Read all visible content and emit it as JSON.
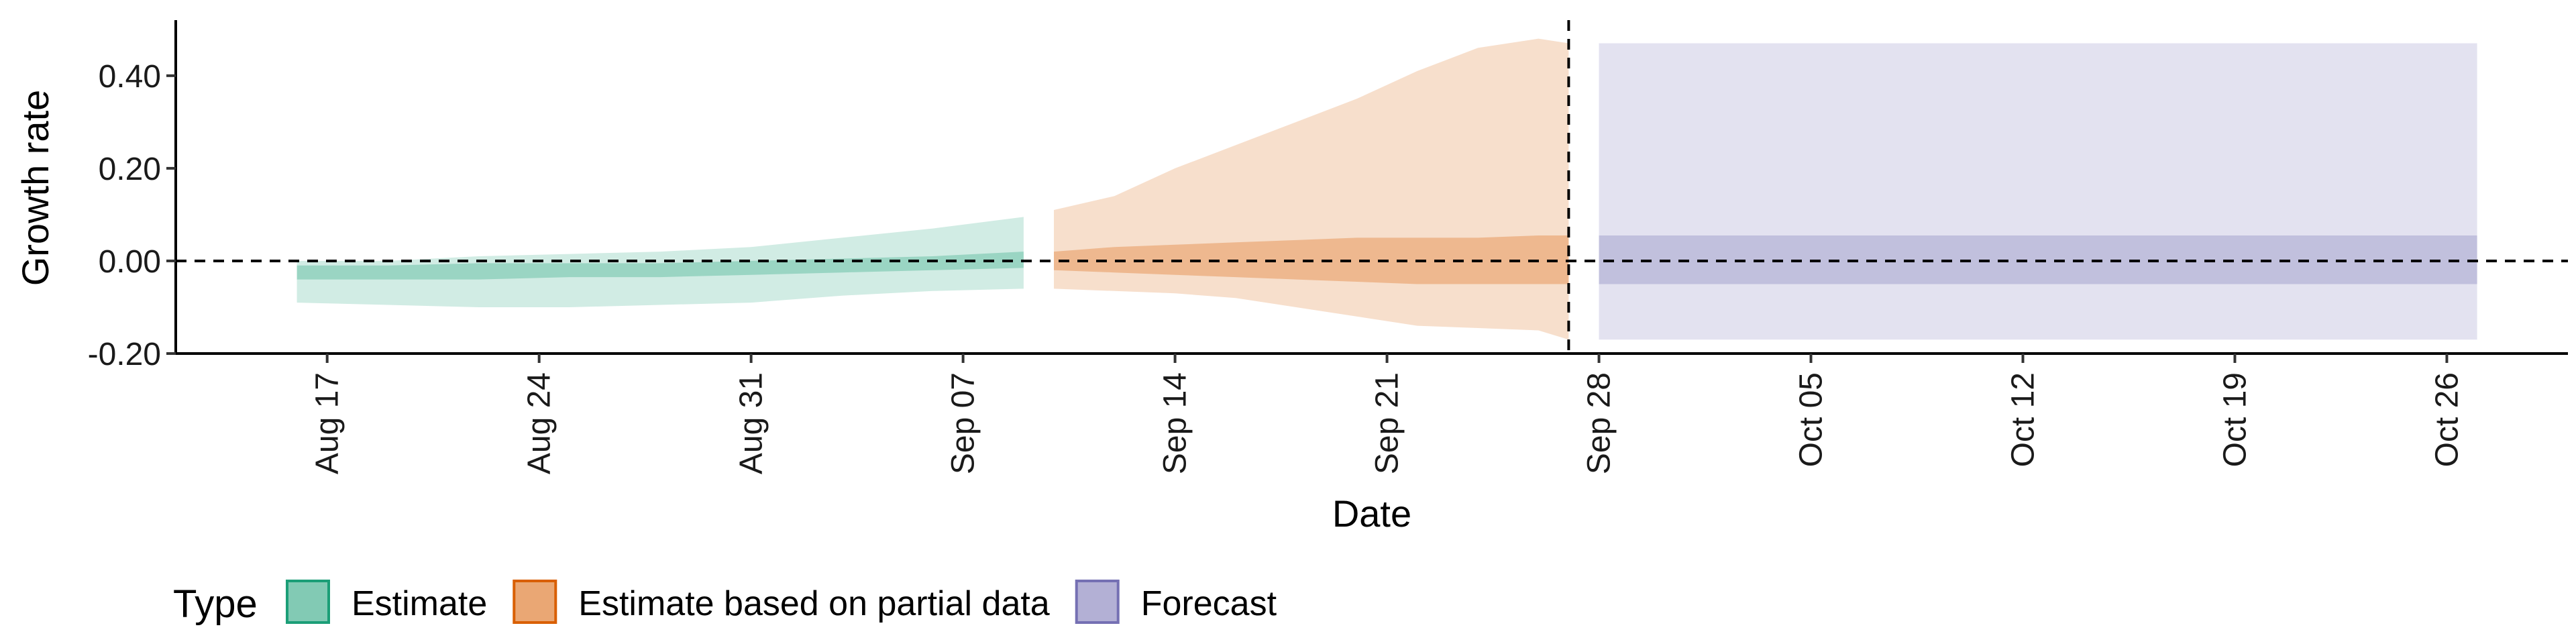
{
  "chart_data": {
    "type": "area",
    "title": "",
    "xlabel": "Date",
    "ylabel": "Growth rate",
    "xlim": [
      "2020-08-12",
      "2020-10-30"
    ],
    "ylim": [
      -0.2,
      0.52
    ],
    "x_ticks": [
      "2020-08-17",
      "2020-08-24",
      "2020-08-31",
      "2020-09-07",
      "2020-09-14",
      "2020-09-21",
      "2020-09-28",
      "2020-10-05",
      "2020-10-12",
      "2020-10-19",
      "2020-10-26"
    ],
    "x_tick_labels": [
      "Aug 17",
      "Aug 24",
      "Aug 31",
      "Sep 07",
      "Sep 14",
      "Sep 21",
      "Sep 28",
      "Oct 05",
      "Oct 12",
      "Oct 19",
      "Oct 26"
    ],
    "y_ticks": [
      -0.2,
      0.0,
      0.2,
      0.4
    ],
    "y_tick_labels": [
      "-0.20",
      "0.00",
      "0.20",
      "0.40"
    ],
    "reference_lines": {
      "horizontal_y": 0.0,
      "vertical_date": "2020-09-27"
    },
    "legend": {
      "title": "Type",
      "position": "bottom"
    },
    "series": [
      {
        "name": "Estimate",
        "color": "#1b9e77",
        "x": [
          "2020-08-16",
          "2020-08-19",
          "2020-08-22",
          "2020-08-25",
          "2020-08-28",
          "2020-08-31",
          "2020-09-03",
          "2020-09-06",
          "2020-09-09"
        ],
        "outer_lower": [
          -0.09,
          -0.095,
          -0.1,
          -0.1,
          -0.095,
          -0.09,
          -0.075,
          -0.065,
          -0.06
        ],
        "outer_upper": [
          0.0,
          0.0,
          0.01,
          0.015,
          0.02,
          0.03,
          0.05,
          0.07,
          0.095
        ],
        "inner_lower": [
          -0.04,
          -0.04,
          -0.04,
          -0.035,
          -0.035,
          -0.03,
          -0.025,
          -0.02,
          -0.015
        ],
        "inner_upper": [
          -0.01,
          -0.01,
          -0.005,
          -0.005,
          -0.005,
          0.0,
          0.005,
          0.01,
          0.02
        ]
      },
      {
        "name": "Estimate based on partial data",
        "color": "#d95f02",
        "x": [
          "2020-09-10",
          "2020-09-12",
          "2020-09-14",
          "2020-09-16",
          "2020-09-18",
          "2020-09-20",
          "2020-09-22",
          "2020-09-24",
          "2020-09-26",
          "2020-09-27"
        ],
        "outer_lower": [
          -0.06,
          -0.065,
          -0.07,
          -0.08,
          -0.1,
          -0.12,
          -0.14,
          -0.145,
          -0.15,
          -0.17
        ],
        "outer_upper": [
          0.11,
          0.14,
          0.2,
          0.25,
          0.3,
          0.35,
          0.41,
          0.46,
          0.48,
          0.47
        ],
        "inner_lower": [
          -0.02,
          -0.025,
          -0.03,
          -0.035,
          -0.04,
          -0.045,
          -0.05,
          -0.05,
          -0.05,
          -0.05
        ],
        "inner_upper": [
          0.02,
          0.03,
          0.035,
          0.04,
          0.045,
          0.05,
          0.05,
          0.05,
          0.055,
          0.055
        ]
      },
      {
        "name": "Forecast",
        "color": "#7570b3",
        "x": [
          "2020-09-28",
          "2020-10-27"
        ],
        "outer_lower": [
          -0.17,
          -0.17
        ],
        "outer_upper": [
          0.47,
          0.47
        ],
        "inner_lower": [
          -0.05,
          -0.05
        ],
        "inner_upper": [
          0.055,
          0.055
        ]
      }
    ]
  }
}
